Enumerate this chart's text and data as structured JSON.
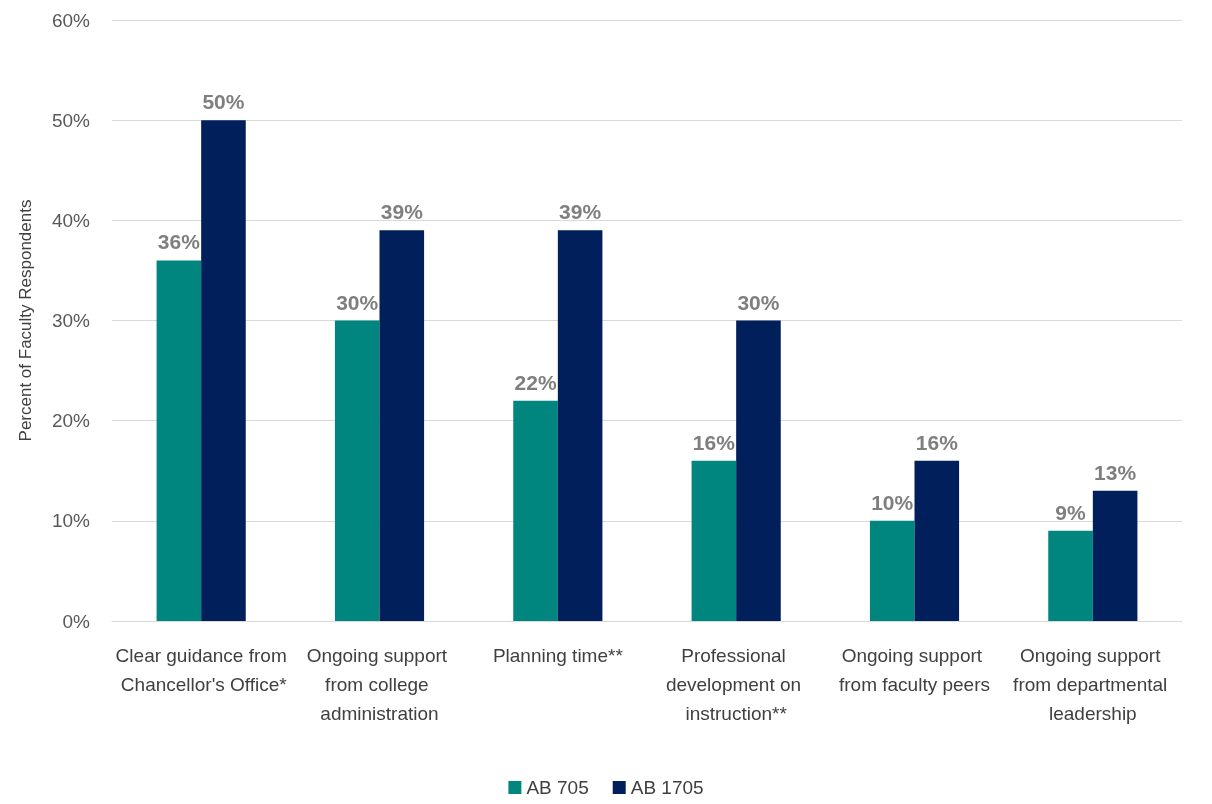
{
  "chart_data": {
    "type": "bar",
    "ylabel": "Percent of Faculty Respondents",
    "categories": [
      "Clear guidance from Chancellor's Office*",
      "Ongoing support from college administration",
      "Planning time**",
      "Professional development on instruction**",
      "Ongoing support from faculty peers",
      "Ongoing support from departmental leadership"
    ],
    "series": [
      {
        "name": "AB 705",
        "color": "#00857f",
        "values": [
          36,
          30,
          22,
          16,
          10,
          9
        ],
        "value_labels": [
          "36%",
          "30%",
          "22%",
          "16%",
          "10%",
          "9%"
        ]
      },
      {
        "name": "AB 1705",
        "color": "#001f5b",
        "values": [
          50,
          39,
          39,
          30,
          16,
          13
        ],
        "value_labels": [
          "50%",
          "39%",
          "39%",
          "30%",
          "16%",
          "13%"
        ]
      }
    ],
    "ylim": [
      0,
      60
    ],
    "yticks": [
      {
        "value": 0,
        "label": "0%"
      },
      {
        "value": 10,
        "label": "10%"
      },
      {
        "value": 20,
        "label": "20%"
      },
      {
        "value": 30,
        "label": "30%"
      },
      {
        "value": 40,
        "label": "40%"
      },
      {
        "value": 50,
        "label": "50%"
      },
      {
        "value": 60,
        "label": "60%"
      }
    ],
    "grid": "y",
    "legend": "bottom"
  }
}
